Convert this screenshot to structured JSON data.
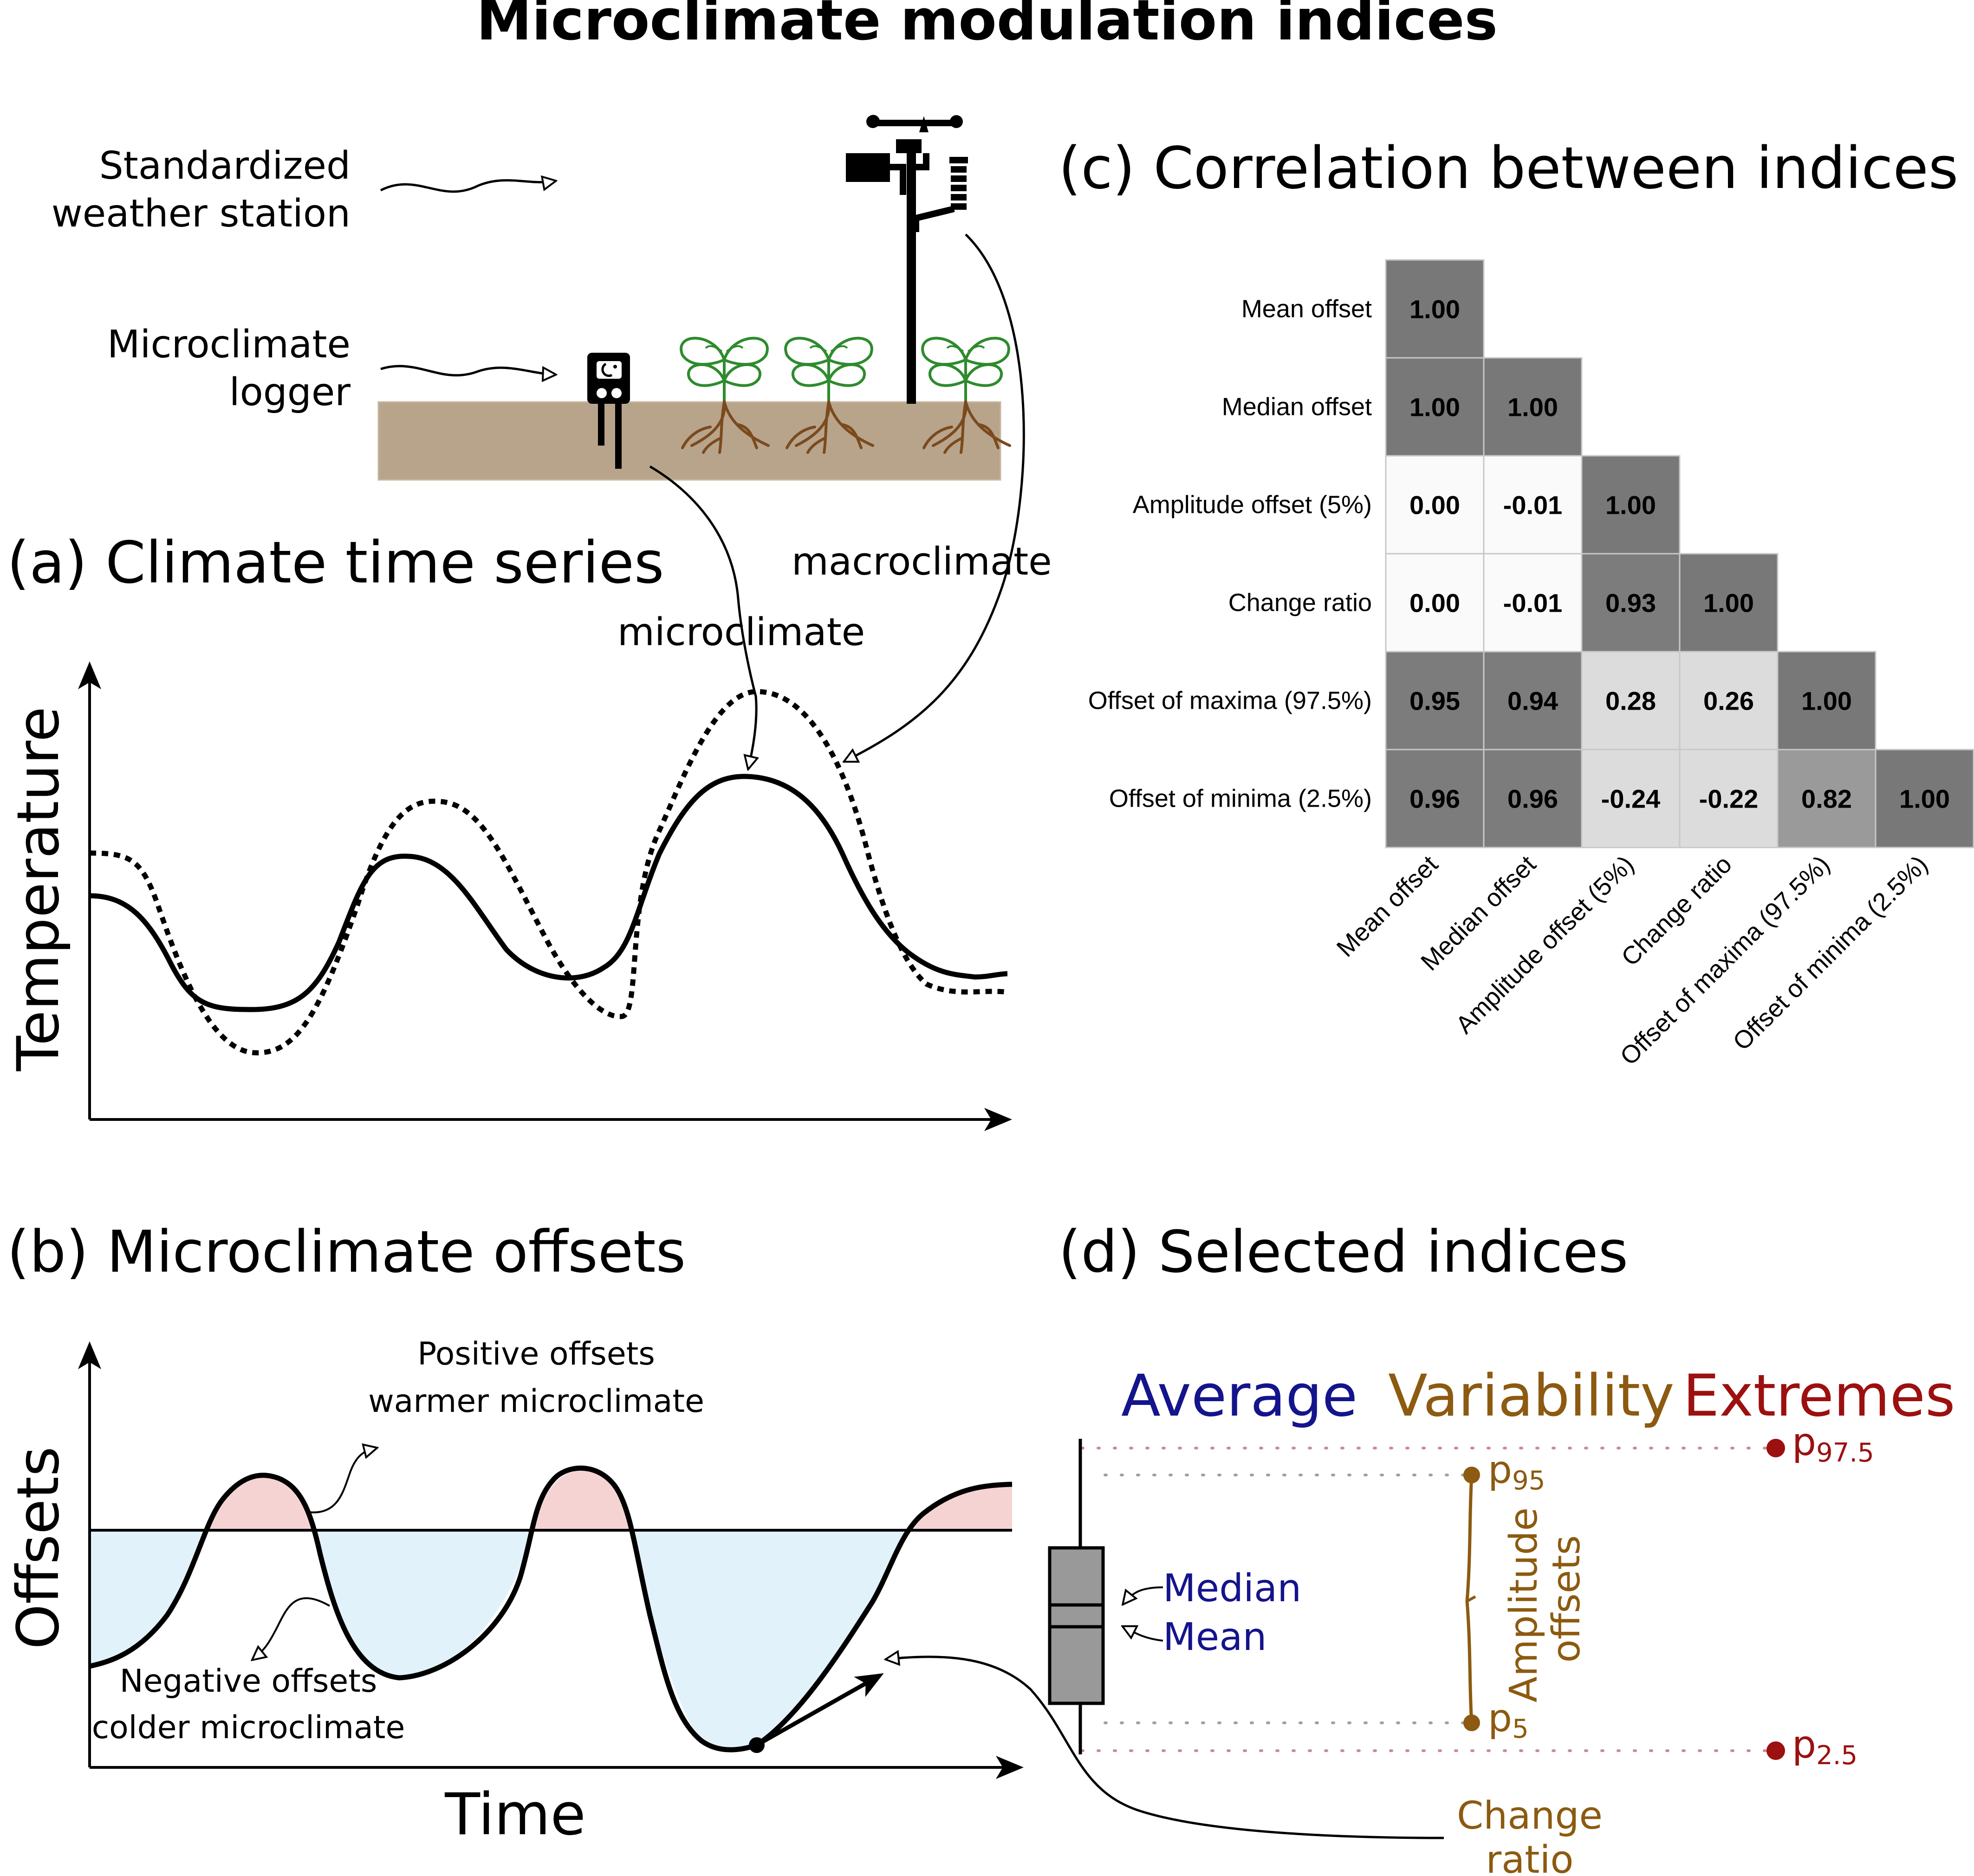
{
  "title": "Microclimate modulation indices",
  "colors": {
    "soil": "#b8a48a",
    "positive_fill": "#f6d3d3",
    "negative_fill": "#e2f2fb",
    "average": "#14148c",
    "variability": "#8c5a10",
    "extremes": "#9c1010",
    "extreme_dots": "#cc8c8c",
    "variability_dots": "#a0a0a0",
    "plant_leaf": "#2e8b2e",
    "plant_root": "#7a4a1e"
  },
  "schematic": {
    "station_label": [
      "Standardized",
      "weather station"
    ],
    "logger_label": [
      "Microclimate",
      "logger"
    ],
    "macro_label": "macroclimate",
    "micro_label": "microclimate",
    "icons": [
      "weather-station-icon",
      "logger-icon",
      "plant-icon"
    ]
  },
  "panel_a": {
    "title": "(a) Climate time series",
    "ylabel": "Temperature"
  },
  "panel_b": {
    "title": "(b) Microclimate offsets",
    "ylabel": "Offsets",
    "xlabel": "Time",
    "positive_label": [
      "Positive offsets",
      "warmer microclimate"
    ],
    "negative_label": [
      "Negative offsets",
      "colder microclimate"
    ]
  },
  "panel_c": {
    "title": "(c) Correlation between indices"
  },
  "panel_d": {
    "title": "(d) Selected indices",
    "headers": {
      "average": "Average",
      "variability": "Variability",
      "extremes": "Extremes"
    },
    "median": "Median",
    "mean": "Mean",
    "amplitude": [
      "Amplitude",
      "offsets"
    ],
    "change": [
      "Change",
      "ratio"
    ],
    "percentiles": {
      "p975": {
        "base": "p",
        "sub": "97.5"
      },
      "p95": {
        "base": "p",
        "sub": "95"
      },
      "p5": {
        "base": "p",
        "sub": "5"
      },
      "p25": {
        "base": "p",
        "sub": "2.5"
      }
    }
  },
  "chart_data": {
    "type": "heatmap",
    "title": "(c) Correlation between indices",
    "labels": [
      "Mean offset",
      "Median offset",
      "Amplitude offset (5%)",
      "Change ratio",
      "Offset of maxima (97.5%)",
      "Offset of minima (2.5%)"
    ],
    "matrix": [
      [
        "1.00"
      ],
      [
        "1.00",
        "1.00"
      ],
      [
        "0.00",
        "-0.01",
        "1.00"
      ],
      [
        "0.00",
        "-0.01",
        "0.93",
        "1.00"
      ],
      [
        "0.95",
        "0.94",
        "0.28",
        "0.26",
        "1.00"
      ],
      [
        "0.96",
        "0.96",
        "-0.24",
        "-0.22",
        "0.82",
        "1.00"
      ]
    ],
    "color_scale": "grey: darker for larger absolute correlation",
    "lower_triangle": true
  }
}
